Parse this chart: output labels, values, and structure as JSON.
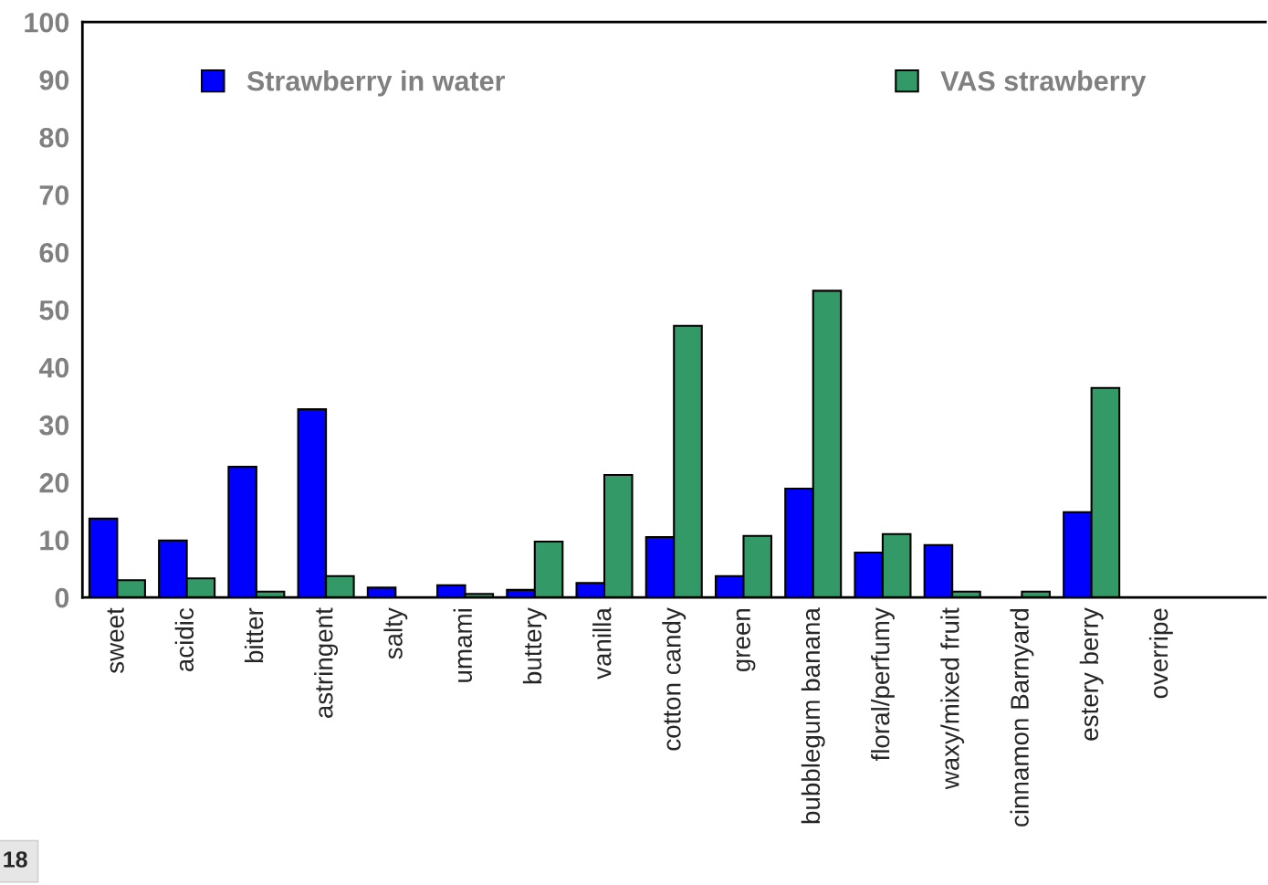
{
  "chart_data": {
    "type": "bar",
    "categories": [
      "sweet",
      "acidic",
      "bitter",
      "astringent",
      "salty",
      "umami",
      "buttery",
      "vanilla",
      "cotton candy",
      "green",
      "bubblegum banana",
      "floral/perfumy",
      "waxy/mixed fruit",
      "cinnamon Barnyard",
      "estery berry",
      "overripe",
      null
    ],
    "series": [
      {
        "name": "Strawberry in water",
        "color": "#0000ff",
        "values": [
          13.7,
          9.9,
          22.7,
          32.7,
          1.7,
          2.1,
          1.3,
          2.5,
          10.5,
          3.7,
          18.9,
          7.8,
          9.1,
          null,
          14.8,
          0,
          null
        ]
      },
      {
        "name": "VAS strawberry",
        "color": "#339966",
        "values": [
          3.0,
          3.3,
          1.0,
          3.7,
          null,
          0.6,
          9.7,
          21.3,
          47.2,
          10.7,
          53.3,
          11.0,
          1.0,
          1.0,
          36.4,
          0,
          null
        ]
      }
    ],
    "ylim": [
      0,
      100
    ],
    "yticks": [
      0,
      10,
      20,
      30,
      40,
      50,
      60,
      70,
      80,
      90,
      100
    ],
    "grid": false,
    "legend": "top",
    "annotations": [
      "18"
    ]
  }
}
